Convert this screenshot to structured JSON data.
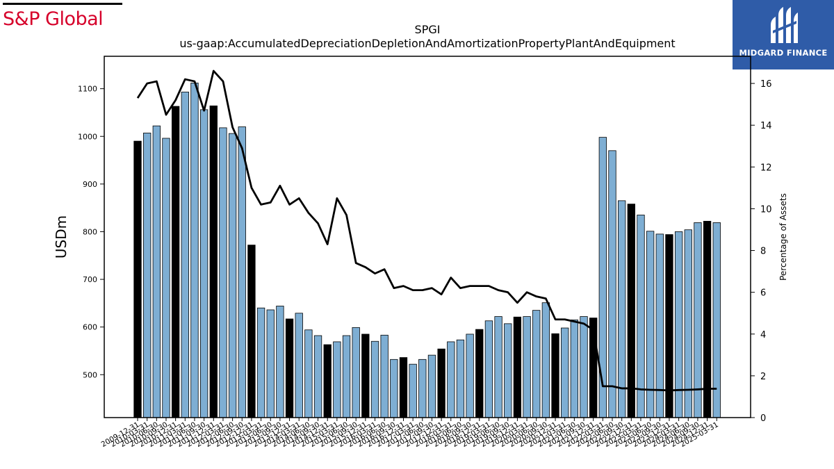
{
  "brand": {
    "left_logo_text": "S&P Global",
    "right_logo_text": "MIDGARD FINANCE",
    "left_logo_color": "#d6002a",
    "right_logo_bg": "#2f5ca8"
  },
  "chart_data": {
    "type": "bar",
    "title": "SPGI",
    "subtitle": "us-gaap:AccumulatedDepreciationDepletionAndAmortizationPropertyPlantAndEquipment",
    "ylabel": "USDm",
    "y2label": "Percentage of Assets",
    "ylim": [
      410,
      1168
    ],
    "y2lim": [
      0,
      17.3
    ],
    "yticks": [
      500,
      600,
      700,
      800,
      900,
      1000,
      1100
    ],
    "y2ticks": [
      0,
      2,
      4,
      6,
      8,
      10,
      12,
      14,
      16
    ],
    "colors": {
      "annual_bar": "#000000",
      "quarter_bar": "#7eaed3",
      "line": "#000000"
    },
    "categories": [
      "2009-12-31",
      "2010-03-31",
      "2010-06-30",
      "2010-09-30",
      "2010-12-31",
      "2011-03-31",
      "2011-06-30",
      "2011-09-30",
      "2011-12-31",
      "2012-03-31",
      "2012-06-30",
      "2012-09-30",
      "2012-12-31",
      "2013-03-31",
      "2013-06-30",
      "2013-09-30",
      "2013-12-31",
      "2014-03-31",
      "2014-06-30",
      "2014-09-30",
      "2014-12-31",
      "2015-03-31",
      "2015-06-30",
      "2015-09-30",
      "2015-12-31",
      "2016-03-31",
      "2016-06-30",
      "2016-09-30",
      "2016-12-31",
      "2017-03-31",
      "2017-06-30",
      "2017-09-30",
      "2017-12-31",
      "2018-03-31",
      "2018-06-30",
      "2018-09-30",
      "2018-12-31",
      "2019-03-31",
      "2019-06-30",
      "2019-09-30",
      "2019-12-31",
      "2020-03-31",
      "2020-06-30",
      "2020-09-30",
      "2020-12-31",
      "2021-03-31",
      "2021-06-30",
      "2021-09-30",
      "2021-12-31",
      "2022-03-31",
      "2022-06-30",
      "2022-09-30",
      "2022-12-31",
      "2023-03-31",
      "2023-06-30",
      "2023-09-30",
      "2023-12-31",
      "2024-03-31",
      "2024-06-30",
      "2024-09-30",
      "2024-12-31",
      "2025-03-31"
    ],
    "series": [
      {
        "type": "bar",
        "values": [
          990,
          1007,
          1022,
          996,
          1063,
          1093,
          1112,
          1056,
          1064,
          1018,
          1006,
          1020,
          772,
          640,
          636,
          644,
          617,
          629,
          594,
          582,
          563,
          569,
          582,
          599,
          585,
          570,
          583,
          532,
          536,
          522,
          532,
          541,
          554,
          569,
          573,
          585,
          595,
          613,
          622,
          607,
          621,
          622,
          635,
          651,
          586,
          598,
          615,
          622,
          619,
          998,
          970,
          865,
          858,
          835,
          801,
          795,
          794,
          800,
          804,
          819,
          822,
          819
        ]
      },
      {
        "type": "line",
        "values": [
          15.3,
          16.0,
          16.1,
          14.5,
          15.2,
          16.2,
          16.1,
          14.7,
          16.6,
          16.1,
          13.9,
          12.9,
          11.0,
          10.2,
          10.3,
          11.1,
          10.2,
          10.5,
          9.8,
          9.3,
          8.3,
          10.5,
          9.7,
          7.4,
          7.2,
          6.9,
          7.1,
          6.2,
          6.3,
          6.1,
          6.1,
          6.2,
          5.9,
          6.7,
          6.2,
          6.3,
          6.3,
          6.3,
          6.1,
          6.0,
          5.5,
          6.0,
          5.8,
          5.7,
          4.7,
          4.7,
          4.6,
          4.5,
          4.2,
          1.5,
          1.5,
          1.4,
          1.4,
          1.35,
          1.33,
          1.32,
          1.3,
          1.32,
          1.33,
          1.35,
          1.38,
          1.38
        ]
      }
    ]
  }
}
